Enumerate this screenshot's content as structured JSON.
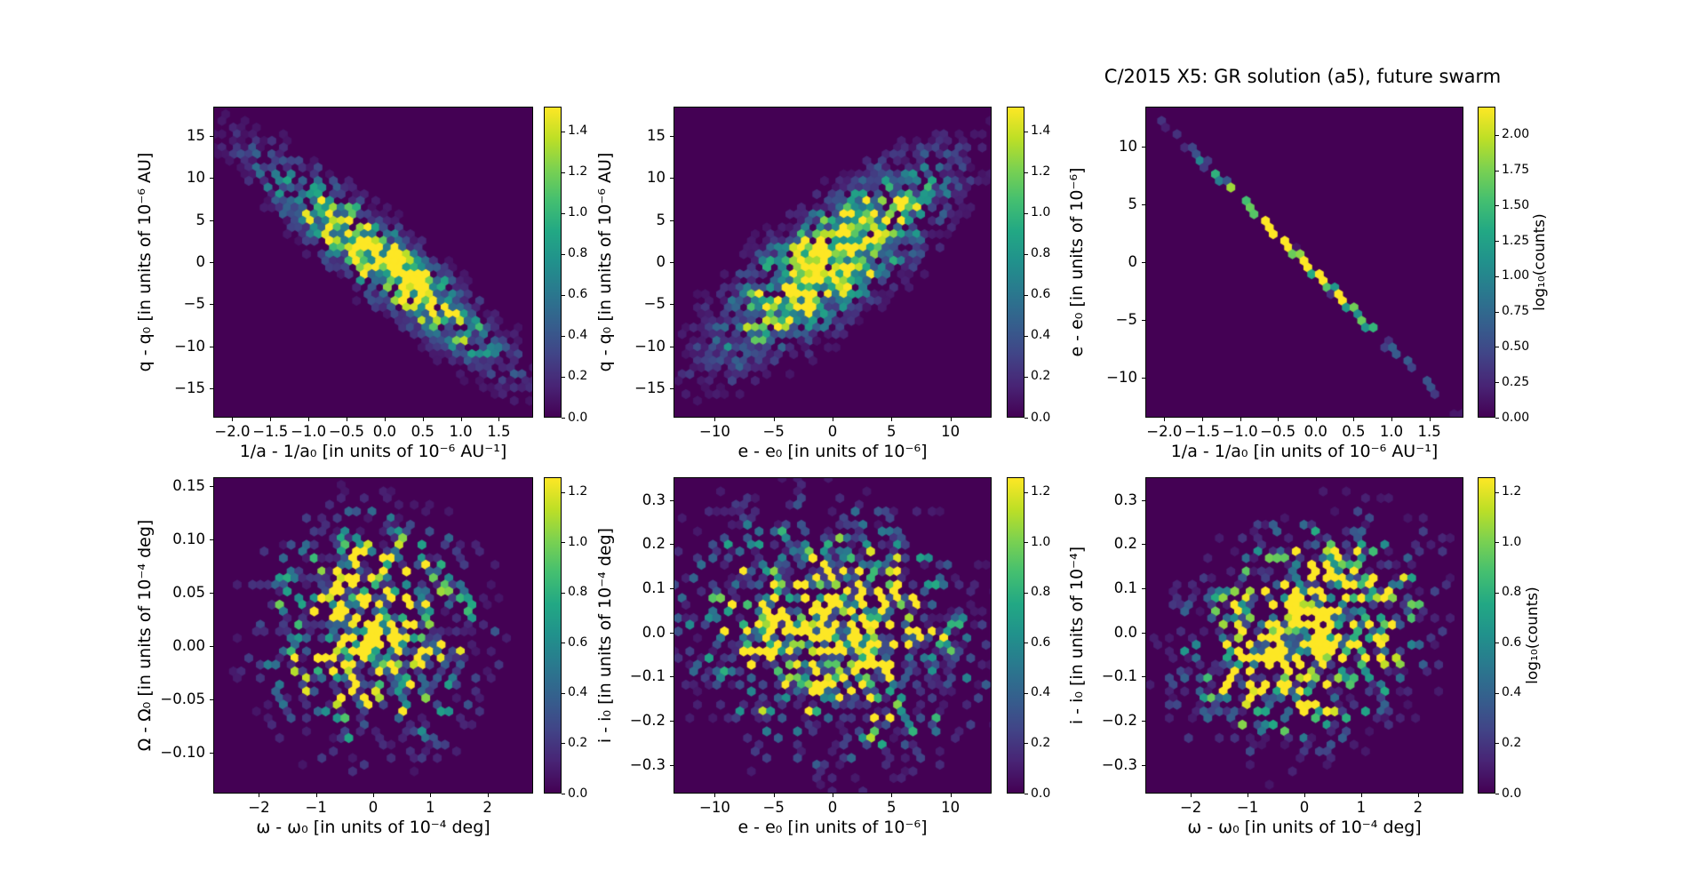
{
  "figure": {
    "title": "C/2015 X5: GR solution (a5), future swarm",
    "colormap": "viridis",
    "background_color": "#ffffff",
    "hex_background_color": "#440154",
    "hex_peak_color": "#fde725"
  },
  "chart_data": [
    {
      "type": "hexbin",
      "name": "q-minus-q0 vs 1/a-minus-1/a0",
      "xlabel": "1/a - 1/a₀ [in units of 10⁻⁶ AU⁻¹]",
      "ylabel": "q - q₀ [in units of 10⁻⁶ AU]",
      "xlim": [
        -2.25,
        1.95
      ],
      "ylim": [
        -18.5,
        18.5
      ],
      "xticks": [
        -2.0,
        -1.5,
        -1.0,
        -0.5,
        0.0,
        0.5,
        1.0,
        1.5
      ],
      "xtick_labels": [
        "−2.0",
        "−1.5",
        "−1.0",
        "−0.5",
        "0.0",
        "0.5",
        "1.0",
        "1.5"
      ],
      "yticks": [
        15,
        10,
        5,
        0,
        -5,
        -10,
        -15
      ],
      "ytick_labels": [
        "15",
        "10",
        "5",
        "0",
        "−5",
        "−10",
        "−15"
      ],
      "colorbar": {
        "vmax_bar": 1.52,
        "ticks": [
          0.0,
          0.2,
          0.4,
          0.6,
          0.8,
          1.0,
          1.2,
          1.4
        ],
        "tick_labels": [
          "0.0",
          "0.2",
          "0.4",
          "0.6",
          "0.8",
          "1.0",
          "1.2",
          "1.4"
        ],
        "label": ""
      },
      "distribution": {
        "shape": "elongated anti-correlated gaussian swarm",
        "cx": 0.53,
        "cy": 0.5,
        "theta_deg": 41,
        "s1": 0.27,
        "s2": 0.055,
        "peak": 1.5,
        "noise": 0.9,
        "thr": 0.07,
        "drop0": 0.03,
        "drop1": 0.25,
        "seed": 1,
        "line": false
      }
    },
    {
      "type": "hexbin",
      "name": "q-minus-q0 vs e-minus-e0",
      "xlabel": "e - e₀ [in units of 10⁻⁶]",
      "ylabel": "q - q₀ [in units of 10⁻⁶ AU]",
      "xlim": [
        -13.5,
        13.5
      ],
      "ylim": [
        -18.5,
        18.5
      ],
      "xticks": [
        -10,
        -5,
        0,
        5,
        10
      ],
      "xtick_labels": [
        "−10",
        "−5",
        "0",
        "5",
        "10"
      ],
      "yticks": [
        15,
        10,
        5,
        0,
        -5,
        -10,
        -15
      ],
      "ytick_labels": [
        "15",
        "10",
        "5",
        "0",
        "−5",
        "−10",
        "−15"
      ],
      "colorbar": {
        "vmax_bar": 1.52,
        "ticks": [
          0.0,
          0.2,
          0.4,
          0.6,
          0.8,
          1.0,
          1.2,
          1.4
        ],
        "tick_labels": [
          "0.0",
          "0.2",
          "0.4",
          "0.6",
          "0.8",
          "1.0",
          "1.2",
          "1.4"
        ],
        "label": ""
      },
      "distribution": {
        "shape": "elongated positively-correlated gaussian swarm",
        "cx": 0.5,
        "cy": 0.5,
        "theta_deg": -40,
        "s1": 0.25,
        "s2": 0.085,
        "peak": 1.5,
        "noise": 0.9,
        "thr": 0.07,
        "drop0": 0.03,
        "drop1": 0.25,
        "seed": 2,
        "line": false
      }
    },
    {
      "type": "hexbin",
      "name": "e-minus-e0 vs 1/a-minus-1/a0",
      "xlabel": "1/a - 1/a₀ [in units of 10⁻⁶ AU⁻¹]",
      "ylabel": "e - e₀ [in units of 10⁻⁶]",
      "xlim": [
        -2.25,
        1.95
      ],
      "ylim": [
        -13.5,
        13.5
      ],
      "xticks": [
        -2.0,
        -1.5,
        -1.0,
        -0.5,
        0.0,
        0.5,
        1.0,
        1.5
      ],
      "xtick_labels": [
        "−2.0",
        "−1.5",
        "−1.0",
        "−0.5",
        "0.0",
        "0.5",
        "1.0",
        "1.5"
      ],
      "yticks": [
        10,
        5,
        0,
        -5,
        -10
      ],
      "ytick_labels": [
        "10",
        "5",
        "0",
        "−5",
        "−10"
      ],
      "colorbar": {
        "vmax_bar": 2.2,
        "ticks": [
          0.0,
          0.25,
          0.5,
          0.75,
          1.0,
          1.25,
          1.5,
          1.75,
          2.0
        ],
        "tick_labels": [
          "0.00",
          "0.25",
          "0.50",
          "0.75",
          "1.00",
          "1.25",
          "1.50",
          "1.75",
          "2.00"
        ],
        "label": "log₁₀(counts)"
      },
      "distribution": {
        "shape": "very thin anti-correlated diagonal line, brightest in the middle",
        "cx": 0.5,
        "cy": 0.5,
        "theta_deg": 45.5,
        "s1": 0.3,
        "s2": 0.003,
        "peak": 2.3,
        "noise": 0.45,
        "thr": 0.09,
        "drop0": 0.02,
        "drop1": 0.5,
        "seed": 3,
        "line": true
      }
    },
    {
      "type": "hexbin",
      "name": "Omega-minus-Omega0 vs omega-minus-omega0",
      "xlabel": "ω - ω₀ [in units of 10⁻⁴ deg]",
      "ylabel": "Ω - Ω₀ [in units of 10⁻⁴ deg]",
      "xlim": [
        -2.8,
        2.8
      ],
      "ylim": [
        -0.138,
        0.158
      ],
      "xticks": [
        -2,
        -1,
        0,
        1,
        2
      ],
      "xtick_labels": [
        "−2",
        "−1",
        "0",
        "1",
        "2"
      ],
      "yticks": [
        0.15,
        0.1,
        0.05,
        0.0,
        -0.05,
        -0.1
      ],
      "ytick_labels": [
        "0.15",
        "0.10",
        "0.05",
        "0.00",
        "−0.05",
        "−0.10"
      ],
      "colorbar": {
        "vmax_bar": 1.26,
        "ticks": [
          0.0,
          0.2,
          0.4,
          0.6,
          0.8,
          1.0,
          1.2
        ],
        "tick_labels": [
          "0.0",
          "0.2",
          "0.4",
          "0.6",
          "0.8",
          "1.0",
          "1.2"
        ],
        "label": ""
      },
      "distribution": {
        "shape": "roughly isotropic speckled gaussian swarm",
        "cx": 0.5,
        "cy": 0.49,
        "theta_deg": 0,
        "s1": 0.155,
        "s2": 0.165,
        "peak": 1.35,
        "noise": 1.7,
        "thr": 0.07,
        "drop0": 0.16,
        "drop1": 0.45,
        "seed": 4,
        "line": false
      }
    },
    {
      "type": "hexbin",
      "name": "i-minus-i0 vs e-minus-e0",
      "xlabel": "e - e₀ [in units of 10⁻⁶]",
      "ylabel": "i - i₀ [in units of 10⁻⁴ deg]",
      "xlim": [
        -13.5,
        13.5
      ],
      "ylim": [
        -0.365,
        0.352
      ],
      "xticks": [
        -10,
        -5,
        0,
        5,
        10
      ],
      "xtick_labels": [
        "−10",
        "−5",
        "0",
        "5",
        "10"
      ],
      "yticks": [
        0.3,
        0.2,
        0.1,
        0.0,
        -0.1,
        -0.2,
        -0.3
      ],
      "ytick_labels": [
        "0.3",
        "0.2",
        "0.1",
        "0.0",
        "−0.1",
        "−0.2",
        "−0.3"
      ],
      "colorbar": {
        "vmax_bar": 1.26,
        "ticks": [
          0.0,
          0.2,
          0.4,
          0.6,
          0.8,
          1.0,
          1.2
        ],
        "tick_labels": [
          "0.0",
          "0.2",
          "0.4",
          "0.6",
          "0.8",
          "1.0",
          "1.2"
        ],
        "label": ""
      },
      "distribution": {
        "shape": "broad speckled gaussian swarm, slight negative tilt",
        "cx": 0.5,
        "cy": 0.5,
        "theta_deg": 22,
        "s1": 0.21,
        "s2": 0.17,
        "peak": 1.35,
        "noise": 1.7,
        "thr": 0.07,
        "drop0": 0.16,
        "drop1": 0.45,
        "seed": 5,
        "line": false
      }
    },
    {
      "type": "hexbin",
      "name": "i-minus-i0 vs omega-minus-omega0",
      "xlabel": "ω - ω₀ [in units of 10⁻⁴ deg]",
      "ylabel": "i - i₀ [in units of 10⁻⁴]",
      "xlim": [
        -2.8,
        2.8
      ],
      "ylim": [
        -0.365,
        0.352
      ],
      "xticks": [
        -2,
        -1,
        0,
        1,
        2
      ],
      "xtick_labels": [
        "−2",
        "−1",
        "0",
        "1",
        "2"
      ],
      "yticks": [
        0.3,
        0.2,
        0.1,
        0.0,
        -0.1,
        -0.2,
        -0.3
      ],
      "ytick_labels": [
        "0.3",
        "0.2",
        "0.1",
        "0.0",
        "−0.1",
        "−0.2",
        "−0.3"
      ],
      "colorbar": {
        "vmax_bar": 1.26,
        "ticks": [
          0.0,
          0.2,
          0.4,
          0.6,
          0.8,
          1.0,
          1.2
        ],
        "tick_labels": [
          "0.0",
          "0.2",
          "0.4",
          "0.6",
          "0.8",
          "1.0",
          "1.2"
        ],
        "label": "log₁₀(counts)"
      },
      "distribution": {
        "shape": "speckled gaussian swarm, slight positive tilt",
        "cx": 0.51,
        "cy": 0.49,
        "theta_deg": -33,
        "s1": 0.19,
        "s2": 0.145,
        "peak": 1.35,
        "noise": 1.7,
        "thr": 0.07,
        "drop0": 0.15,
        "drop1": 0.45,
        "seed": 6,
        "line": false
      }
    }
  ]
}
